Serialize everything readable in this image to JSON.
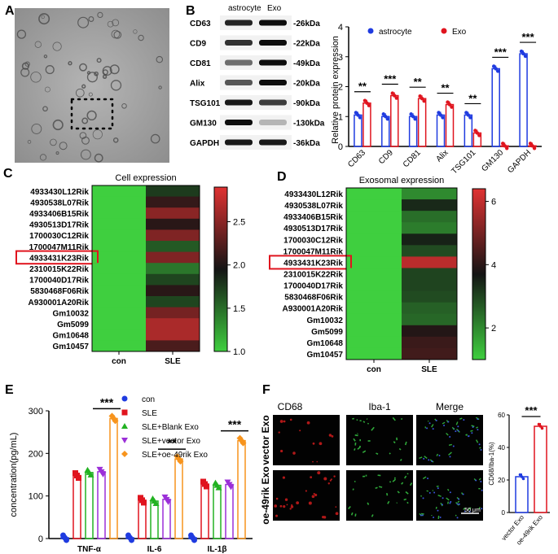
{
  "panels": {
    "a": {
      "letter": "A"
    },
    "b": {
      "letter": "B",
      "blot": {
        "col_headers": [
          "astrocyte",
          "Exo"
        ],
        "proteins": [
          "CD63",
          "CD9",
          "CD81",
          "Alix",
          "TSG101",
          "GM130",
          "GAPDH"
        ],
        "sizes": [
          "-26kDa",
          "-22kDa",
          "-49kDa",
          "-20kDa",
          "-90kDa",
          "-130kDa",
          "-36kDa"
        ]
      }
    },
    "c": {
      "letter": "C"
    },
    "d": {
      "letter": "D"
    },
    "e": {
      "letter": "E"
    },
    "f": {
      "letter": "F",
      "col_headers": [
        "CD68",
        "Iba-1",
        "Merge"
      ],
      "row_labels": [
        "vector Exo",
        "oe-49rik Exo"
      ],
      "scale_bar": "50 μm"
    }
  },
  "colors": {
    "blue": "#1f3be0",
    "red": "#e0141e",
    "green": "#22b222",
    "purple": "#9b2fd8",
    "orange": "#f7941d",
    "heat_low": "#3fcf3f",
    "heat_mid": "#141414",
    "heat_high": "#e03232"
  },
  "chart_data": [
    {
      "id": "b",
      "type": "bar",
      "title": "",
      "xlabel": "",
      "ylabel": "Relative protein expression",
      "categories": [
        "CD63",
        "CD9",
        "CD81",
        "Alix",
        "TSG101",
        "GM130",
        "GAPDH"
      ],
      "series": [
        {
          "name": "astrocyte",
          "values": [
            1.05,
            1.0,
            1.0,
            1.05,
            1.05,
            2.6,
            3.1
          ]
        },
        {
          "name": "Exo",
          "values": [
            1.45,
            1.7,
            1.6,
            1.4,
            0.45,
            0.02,
            0.02
          ]
        }
      ],
      "ylim": [
        0,
        4
      ],
      "yticks": [
        0,
        1,
        2,
        3,
        4
      ],
      "significance": [
        "**",
        "***",
        "**",
        "**",
        "**",
        "***",
        "***"
      ],
      "legend": "top",
      "grid": false
    },
    {
      "id": "c",
      "type": "heatmap",
      "title": "Cell expression",
      "rows": [
        "4933430L12Rik",
        "4930538L07Rik",
        "4933406B15Rik",
        "4930513D17Rik",
        "1700030C12Rik",
        "1700047M11Rik",
        "4933431K23Rik",
        "2310015K22Rik",
        "1700040D17Rik",
        "5830468F06Rik",
        "A930001A20Rik",
        "Gm10032",
        "Gm5099",
        "Gm10648",
        "Gm10457"
      ],
      "columns": [
        "con",
        "SLE"
      ],
      "values": [
        [
          1.0,
          1.75
        ],
        [
          1.0,
          2.1
        ],
        [
          1.0,
          2.5
        ],
        [
          1.0,
          2.05
        ],
        [
          1.0,
          2.45
        ],
        [
          1.0,
          1.6
        ],
        [
          1.0,
          2.45
        ],
        [
          1.0,
          1.45
        ],
        [
          1.0,
          1.7
        ],
        [
          1.0,
          2.05
        ],
        [
          1.0,
          1.7
        ],
        [
          1.0,
          2.4
        ],
        [
          1.0,
          2.65
        ],
        [
          1.0,
          2.65
        ],
        [
          1.0,
          2.2
        ]
      ],
      "colorbar_ticks": [
        1.0,
        1.5,
        2.0,
        2.5
      ],
      "vmin": 1.0,
      "vmax": 2.9,
      "highlighted_row": "4933431K23Rik"
    },
    {
      "id": "d",
      "type": "heatmap",
      "title": "Exosomal expression",
      "rows": [
        "4933430L12Rik",
        "4930538L07Rik",
        "4933406B15Rik",
        "4930513D17Rik",
        "1700030C12Rik",
        "1700047M11Rik",
        "4933431K23Rik",
        "2310015K22Rik",
        "1700040D17Rik",
        "5830468F06Rik",
        "A930001A20Rik",
        "Gm10032",
        "Gm5099",
        "Gm10648",
        "Gm10457"
      ],
      "columns": [
        "con",
        "SLE"
      ],
      "values": [
        [
          1.0,
          2.0
        ],
        [
          1.0,
          3.4
        ],
        [
          1.0,
          2.4
        ],
        [
          1.0,
          2.2
        ],
        [
          1.0,
          3.5
        ],
        [
          1.0,
          2.9
        ],
        [
          1.0,
          5.9
        ],
        [
          1.0,
          3.0
        ],
        [
          1.0,
          3.0
        ],
        [
          1.0,
          2.9
        ],
        [
          1.0,
          2.6
        ],
        [
          1.0,
          2.5
        ],
        [
          1.0,
          3.9
        ],
        [
          1.0,
          4.2
        ],
        [
          1.0,
          4.3
        ]
      ],
      "colorbar_ticks": [
        2,
        4,
        6
      ],
      "vmin": 1.0,
      "vmax": 6.4,
      "highlighted_row": "4933431K23Rik"
    },
    {
      "id": "e",
      "type": "bar",
      "title": "",
      "xlabel": "",
      "ylabel": "concentration(pg/mL)",
      "categories": [
        "TNF-α",
        "IL-6",
        "IL-1β"
      ],
      "series": [
        {
          "name": "con",
          "values": [
            2,
            2,
            2
          ]
        },
        {
          "name": "SLE",
          "values": [
            148,
            90,
            128
          ]
        },
        {
          "name": "SLE+Blank Exo",
          "values": [
            155,
            88,
            125
          ]
        },
        {
          "name": "SLE+vector Exo",
          "values": [
            157,
            92,
            127
          ]
        },
        {
          "name": "SLE+oe-49rik Exo",
          "values": [
            282,
            187,
            230
          ]
        }
      ],
      "ylim": [
        0,
        300
      ],
      "yticks": [
        0,
        100,
        200,
        300
      ],
      "significance": [
        "***",
        "**",
        "***"
      ],
      "legend": "top-left",
      "grid": false
    },
    {
      "id": "f",
      "type": "bar",
      "title": "",
      "xlabel": "",
      "ylabel": "CD68/Iba-1(%)",
      "categories": [
        "vector Exo",
        "oe-49rik Exo"
      ],
      "values": [
        22,
        53
      ],
      "ylim": [
        0,
        60
      ],
      "yticks": [
        0,
        20,
        40,
        60
      ],
      "significance": "***",
      "grid": false
    }
  ]
}
